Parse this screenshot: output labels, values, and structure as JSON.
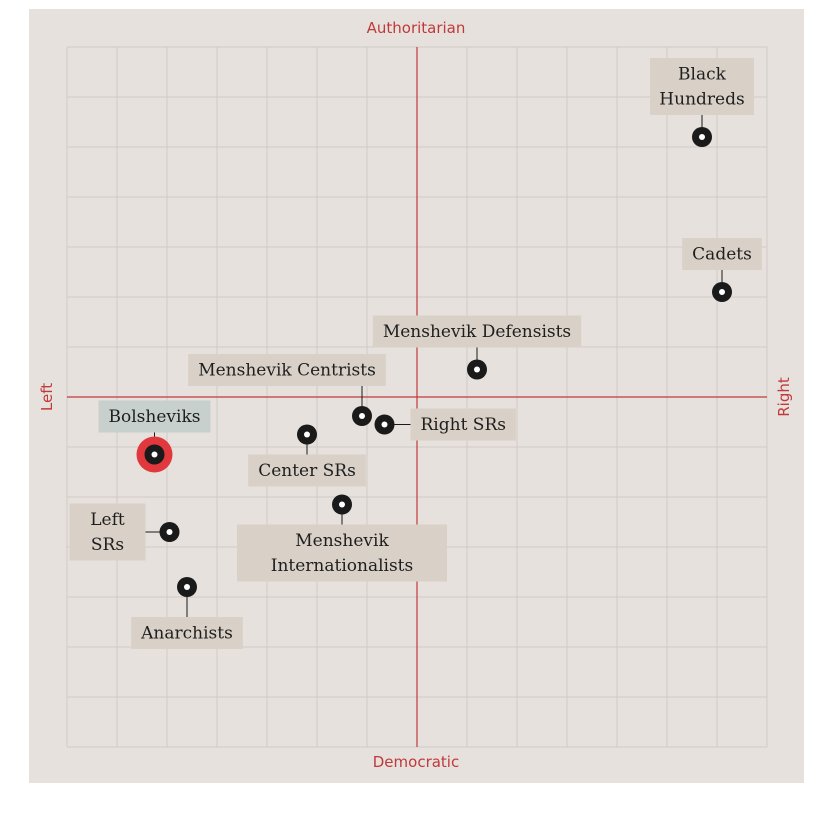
{
  "chart_data": {
    "type": "scatter",
    "title": "",
    "axes": {
      "top": "Authoritarian",
      "bottom": "Democratic",
      "left": "Left",
      "right": "Right"
    },
    "xlim": [
      -7,
      7
    ],
    "ylim": [
      -7,
      7
    ],
    "grid": true,
    "colors": {
      "background": "#e6e1dc",
      "grid": "#d0cbc6",
      "axis": "#c0393b",
      "point": "#1a1a1a",
      "highlight": "#e0383d",
      "label_bg": "#d9d1c8",
      "highlight_label_bg": "#c7d0cd"
    },
    "points": [
      {
        "label": "Black Hundreds",
        "x": 5.7,
        "y": 5.2,
        "highlight": false
      },
      {
        "label": "Cadets",
        "x": 6.1,
        "y": 2.1,
        "highlight": false
      },
      {
        "label": "Menshevik Defensists",
        "x": 1.2,
        "y": 0.55,
        "highlight": false
      },
      {
        "label": "Menshevik Centrists",
        "x": -1.1,
        "y": -0.38,
        "highlight": false
      },
      {
        "label": "Right SRs",
        "x": -0.65,
        "y": -0.55,
        "highlight": false
      },
      {
        "label": "Bolsheviks",
        "x": -5.25,
        "y": -1.15,
        "highlight": true
      },
      {
        "label": "Center SRs",
        "x": -2.2,
        "y": -0.75,
        "highlight": false
      },
      {
        "label": "Menshevik Internationalists",
        "x": -1.5,
        "y": -2.15,
        "highlight": false
      },
      {
        "label": "Left SRs",
        "x": -4.95,
        "y": -2.7,
        "highlight": false
      },
      {
        "label": "Anarchists",
        "x": -4.6,
        "y": -3.8,
        "highlight": false
      }
    ]
  }
}
